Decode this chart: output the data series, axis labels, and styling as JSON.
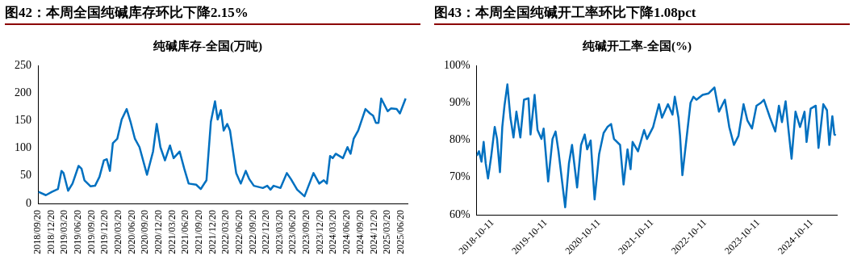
{
  "chart_data": [
    {
      "type": "line",
      "title": "图42：本周全国纯碱库存环比下降2.15%",
      "subtitle": "纯碱库存-全国(万吨)",
      "color": "#0070c0",
      "marker": "none",
      "x": [
        "2018-09-24",
        "2018-11-13",
        "2018-12-24",
        "2019-02-03",
        "2019-02-27",
        "2019-03-13",
        "2019-04-13",
        "2019-05-13",
        "2019-06-23",
        "2019-07-13",
        "2019-08-02",
        "2019-09-13",
        "2019-10-13",
        "2019-11-12",
        "2019-12-12",
        "2020-01-01",
        "2020-01-22",
        "2020-02-11",
        "2020-03-12",
        "2020-04-11",
        "2020-05-15",
        "2020-06-10",
        "2020-07-10",
        "2020-08-10",
        "2020-09-30",
        "2020-11-10",
        "2020-12-05",
        "2020-12-30",
        "2021-01-30",
        "2021-03-05",
        "2021-03-30",
        "2021-05-10",
        "2021-06-10",
        "2021-07-10",
        "2021-08-30",
        "2021-09-30",
        "2021-11-08",
        "2021-12-08",
        "2022-01-05",
        "2022-01-23",
        "2022-02-14",
        "2022-03-05",
        "2022-03-29",
        "2022-04-17",
        "2022-05-29",
        "2022-06-29",
        "2022-08-02",
        "2022-08-26",
        "2022-09-26",
        "2022-11-26",
        "2022-12-26",
        "2023-01-17",
        "2023-02-07",
        "2023-03-26",
        "2023-05-08",
        "2023-06-05",
        "2023-07-17",
        "2023-09-05",
        "2023-11-05",
        "2023-12-14",
        "2024-01-14",
        "2024-02-04",
        "2024-02-26",
        "2024-03-14",
        "2024-04-04",
        "2024-05-23",
        "2024-06-23",
        "2024-07-14",
        "2024-08-04",
        "2024-09-04",
        "2024-10-23",
        "2024-11-23",
        "2024-12-14",
        "2025-01-02",
        "2025-01-20",
        "2025-02-07",
        "2025-03-23",
        "2025-04-14",
        "2025-05-23",
        "2025-06-14",
        "2025-07-23"
      ],
      "values": [
        21,
        15,
        21,
        26,
        59,
        55,
        23,
        36,
        68,
        63,
        42,
        31,
        32,
        48,
        78,
        80,
        59,
        109,
        117,
        152,
        171,
        148,
        117,
        102,
        52,
        94,
        144,
        102,
        78,
        105,
        82,
        94,
        63,
        36,
        34,
        26,
        42,
        148,
        185,
        152,
        169,
        132,
        144,
        132,
        55,
        36,
        59,
        44,
        32,
        28,
        32,
        25,
        32,
        28,
        55,
        44,
        25,
        13,
        55,
        36,
        42,
        36,
        86,
        82,
        90,
        82,
        102,
        90,
        117,
        132,
        171,
        163,
        159,
        146,
        146,
        190,
        167,
        172,
        171,
        163,
        190
      ],
      "xlim": [
        "2018-09-20",
        "2025-08-05"
      ],
      "xticks": [
        {
          "value": "2018-09-20",
          "label": "2018/09/20"
        },
        {
          "value": "2018-12-20",
          "label": "2018/12/20"
        },
        {
          "value": "2019-03-20",
          "label": "2019/03/20"
        },
        {
          "value": "2019-06-20",
          "label": "2019/06/20"
        },
        {
          "value": "2019-09-20",
          "label": "2019/09/20"
        },
        {
          "value": "2019-12-20",
          "label": "2019/12/20"
        },
        {
          "value": "2020-03-20",
          "label": "2020/03/20"
        },
        {
          "value": "2020-06-20",
          "label": "2020/06/20"
        },
        {
          "value": "2020-09-20",
          "label": "2020/09/20"
        },
        {
          "value": "2020-12-20",
          "label": "2020/12/20"
        },
        {
          "value": "2021-03-20",
          "label": "2021/03/20"
        },
        {
          "value": "2021-06-20",
          "label": "2021/06/20"
        },
        {
          "value": "2021-09-20",
          "label": "2021/09/20"
        },
        {
          "value": "2021-12-20",
          "label": "2021/12/20"
        },
        {
          "value": "2022-03-20",
          "label": "2022/03/20"
        },
        {
          "value": "2022-06-20",
          "label": "2022/06/20"
        },
        {
          "value": "2022-09-20",
          "label": "2022/09/20"
        },
        {
          "value": "2022-12-20",
          "label": "2022/12/20"
        },
        {
          "value": "2023-03-20",
          "label": "2023/03/20"
        },
        {
          "value": "2023-06-20",
          "label": "2023/06/20"
        },
        {
          "value": "2023-09-20",
          "label": "2023/09/20"
        },
        {
          "value": "2023-12-20",
          "label": "2023/12/20"
        },
        {
          "value": "2024-03-20",
          "label": "2024/03/20"
        },
        {
          "value": "2024-06-20",
          "label": "2024/06/20"
        },
        {
          "value": "2024-09-20",
          "label": "2024/09/20"
        },
        {
          "value": "2024-12-20",
          "label": "2024/12/20"
        },
        {
          "value": "2025-03-20",
          "label": "2025/03/20"
        },
        {
          "value": "2025-06-20",
          "label": "2025/06/20"
        }
      ],
      "ylim": [
        0,
        250
      ],
      "yticks": [
        0,
        50,
        100,
        150,
        200,
        250
      ]
    },
    {
      "type": "line",
      "title": "图43：本周全国纯碱开工率环比下降1.08pct",
      "subtitle": "纯碱开工率-全国(%)",
      "color": "#0070c0",
      "marker": "none",
      "x": [
        "2018-10-11",
        "2018-10-27",
        "2018-11-13",
        "2018-11-28",
        "2018-12-12",
        "2018-12-28",
        "2019-01-18",
        "2019-02-12",
        "2019-02-28",
        "2019-03-20",
        "2019-04-05",
        "2019-04-20",
        "2019-05-10",
        "2019-05-31",
        "2019-06-21",
        "2019-07-11",
        "2019-08-07",
        "2019-09-01",
        "2019-10-02",
        "2019-10-16",
        "2019-11-13",
        "2019-12-03",
        "2019-12-30",
        "2020-01-14",
        "2020-02-14",
        "2020-03-15",
        "2020-04-05",
        "2020-04-25",
        "2020-06-10",
        "2020-07-06",
        "2020-07-27",
        "2020-08-31",
        "2020-09-27",
        "2020-10-22",
        "2020-11-08",
        "2020-12-02",
        "2020-12-29",
        "2021-01-29",
        "2021-03-01",
        "2021-03-27",
        "2021-04-21",
        "2021-05-11",
        "2021-06-22",
        "2021-07-16",
        "2021-08-12",
        "2021-09-02",
        "2021-09-16",
        "2021-10-23",
        "2021-12-04",
        "2021-12-24",
        "2022-02-04",
        "2022-03-16",
        "2022-04-06",
        "2022-05-17",
        "2022-06-17",
        "2022-07-03",
        "2022-07-28",
        "2022-08-08",
        "2022-08-24",
        "2022-09-28",
        "2022-10-19",
        "2022-11-08",
        "2022-11-29",
        "2023-01-10",
        "2023-02-20",
        "2023-04-01",
        "2023-05-02",
        "2023-06-12",
        "2023-07-12",
        "2023-08-13",
        "2023-09-13",
        "2023-10-18",
        "2023-11-14",
        "2023-12-15",
        "2024-01-15",
        "2024-02-15",
        "2024-03-06",
        "2024-04-17",
        "2024-05-23",
        "2024-06-17",
        "2024-07-08",
        "2024-08-02",
        "2024-08-22",
        "2024-09-12",
        "2024-10-09",
        "2024-11-09",
        "2024-12-10",
        "2024-12-24",
        "2025-01-21",
        "2025-02-25",
        "2025-03-16",
        "2025-04-18",
        "2025-05-13",
        "2025-05-29",
        "2025-06-19",
        "2025-07-03",
        "2025-07-13"
      ],
      "values": [
        75.8,
        77.0,
        74.2,
        79.5,
        73.8,
        69.7,
        75.4,
        83.5,
        80.3,
        71.4,
        83.5,
        89.2,
        94.9,
        86.0,
        80.7,
        87.6,
        80.7,
        90.8,
        91.2,
        81.5,
        92.1,
        82.7,
        80.3,
        83.1,
        68.9,
        80.3,
        82.3,
        77.0,
        62.0,
        73.8,
        78.7,
        67.3,
        78.7,
        81.5,
        77.5,
        79.9,
        64.1,
        76.2,
        81.9,
        83.5,
        84.3,
        80.3,
        78.7,
        68.1,
        77.5,
        72.2,
        79.5,
        77.0,
        82.7,
        80.3,
        83.5,
        89.6,
        86.0,
        89.6,
        86.8,
        91.6,
        86.0,
        81.1,
        70.6,
        82.7,
        90.0,
        91.6,
        90.8,
        92.1,
        92.5,
        94.1,
        87.6,
        90.8,
        83.5,
        78.7,
        81.1,
        89.6,
        85.2,
        83.1,
        89.2,
        90.0,
        90.8,
        86.0,
        82.3,
        89.2,
        84.8,
        90.4,
        82.7,
        75.0,
        87.6,
        83.5,
        87.6,
        79.5,
        88.4,
        89.2,
        77.9,
        89.6,
        88.0,
        78.7,
        86.4,
        81.5,
        81.3
      ],
      "xlim": [
        "2018-10-11",
        "2025-07-20"
      ],
      "xticks": [
        "2018-10-11",
        "2019-10-11",
        "2020-10-11",
        "2021-10-11",
        "2022-10-11",
        "2023-10-11",
        "2024-10-11"
      ],
      "ylim": [
        60,
        100
      ],
      "yticks": [
        {
          "value": 60,
          "label": "60%"
        },
        {
          "value": 70,
          "label": "70%"
        },
        {
          "value": 80,
          "label": "80%"
        },
        {
          "value": 90,
          "label": "90%"
        },
        {
          "value": 100,
          "label": "100%"
        }
      ]
    }
  ]
}
